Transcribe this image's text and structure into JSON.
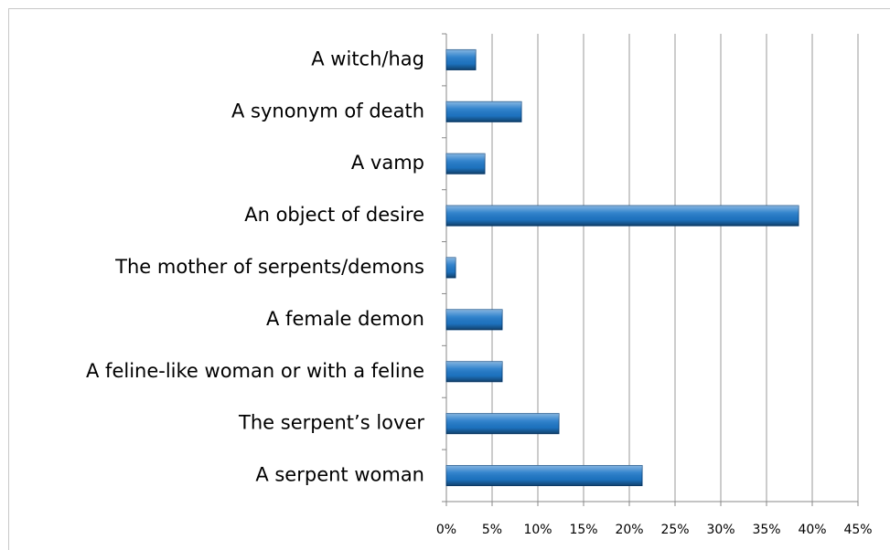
{
  "chart_data": {
    "type": "bar",
    "orientation": "horizontal",
    "categories": [
      "A witch/hag",
      "A synonym of death",
      "A vamp",
      "An object of desire",
      "The mother of serpents/demons",
      "A female demon",
      "A feline-like woman or with a feline",
      "The serpent’s lover",
      "A serpent woman"
    ],
    "values": [
      3.2,
      8.2,
      4.2,
      38.5,
      1,
      6.1,
      6.1,
      12.3,
      21.4
    ],
    "color": "#1f78c8",
    "xlim": [
      0,
      45
    ],
    "xticks": [
      {
        "value": 0,
        "label": "0%"
      },
      {
        "value": 5,
        "label": "5%"
      },
      {
        "value": 10,
        "label": "10%"
      },
      {
        "value": 15,
        "label": "15%"
      },
      {
        "value": 20,
        "label": "20%"
      },
      {
        "value": 25,
        "label": "25%"
      },
      {
        "value": 30,
        "label": "30%"
      },
      {
        "value": 35,
        "label": "35%"
      },
      {
        "value": 40,
        "label": "40%"
      },
      {
        "value": 45,
        "label": "45%"
      }
    ],
    "grid": true
  }
}
